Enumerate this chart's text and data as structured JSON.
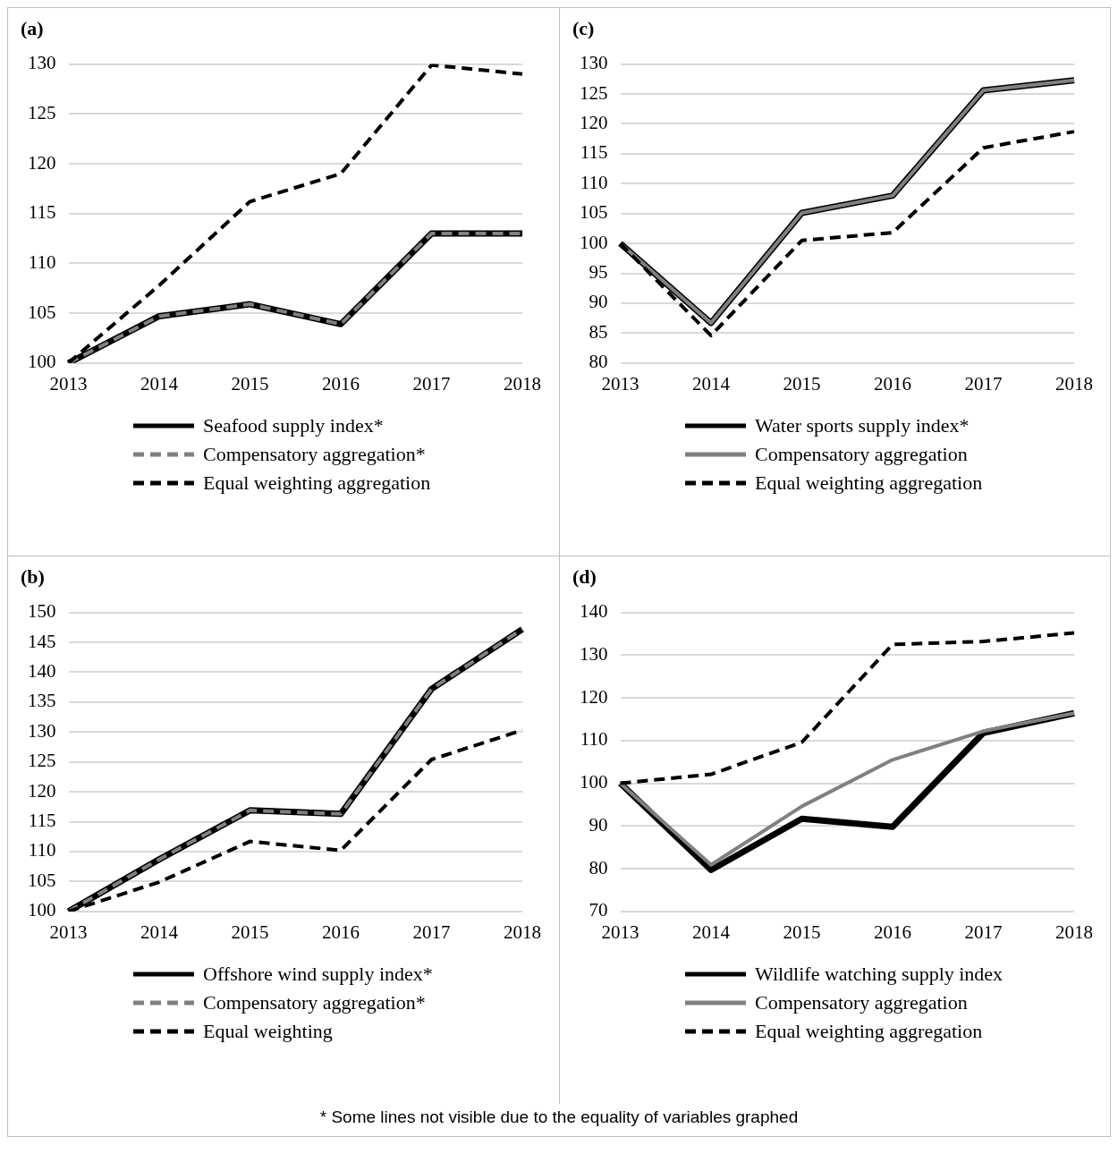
{
  "chart_data": [
    {
      "type": "line",
      "title": "(a)",
      "categories": [
        "2013",
        "2014",
        "2015",
        "2016",
        "2017",
        "2018"
      ],
      "ylim": [
        100,
        130
      ],
      "yticks": [
        100,
        105,
        110,
        115,
        120,
        125,
        130
      ],
      "grid": "y",
      "legend": "bottom",
      "series": [
        {
          "name": "Seafood supply index*",
          "color": "#000000",
          "line_style": "solid",
          "values": [
            100,
            104.7,
            105.9,
            103.9,
            113.0,
            113.0
          ]
        },
        {
          "name": "Compensatory aggregation*",
          "color": "#808080",
          "line_style": "dashed",
          "values": [
            100,
            104.7,
            105.9,
            103.9,
            113.0,
            113.0
          ]
        },
        {
          "name": "Equal weighting aggregation",
          "color": "#000000",
          "line_style": "dashed",
          "values": [
            100,
            107.8,
            116.2,
            119.0,
            129.9,
            129.0
          ]
        }
      ]
    },
    {
      "type": "line",
      "title": "(c)",
      "categories": [
        "2013",
        "2014",
        "2015",
        "2016",
        "2017",
        "2018"
      ],
      "ylim": [
        80,
        130
      ],
      "yticks": [
        80,
        85,
        90,
        95,
        100,
        105,
        110,
        115,
        120,
        125,
        130
      ],
      "grid": "y",
      "legend": "bottom",
      "series": [
        {
          "name": "Water sports supply index*",
          "color": "#000000",
          "line_style": "solid",
          "values": [
            100,
            86.7,
            105.1,
            108.0,
            125.6,
            127.3
          ]
        },
        {
          "name": "Compensatory aggregation",
          "color": "#808080",
          "line_style": "solid",
          "values": [
            100,
            86.7,
            105.1,
            108.0,
            125.6,
            127.3
          ]
        },
        {
          "name": "Equal weighting aggregation",
          "color": "#000000",
          "line_style": "dashed",
          "values": [
            100,
            84.6,
            100.5,
            101.8,
            116.0,
            118.7
          ]
        }
      ]
    },
    {
      "type": "line",
      "title": "(b)",
      "categories": [
        "2013",
        "2014",
        "2015",
        "2016",
        "2017",
        "2018"
      ],
      "ylim": [
        100,
        150
      ],
      "yticks": [
        100,
        105,
        110,
        115,
        120,
        125,
        130,
        135,
        140,
        145,
        150
      ],
      "grid": "y",
      "legend": "bottom",
      "series": [
        {
          "name": "Offshore wind supply index*",
          "color": "#000000",
          "line_style": "solid",
          "values": [
            100,
            108.7,
            116.9,
            116.3,
            137.2,
            147.2
          ]
        },
        {
          "name": "Compensatory aggregation*",
          "color": "#808080",
          "line_style": "dashed",
          "values": [
            100,
            108.7,
            116.9,
            116.3,
            137.2,
            147.2
          ]
        },
        {
          "name": "Equal weighting",
          "color": "#000000",
          "line_style": "dashed",
          "values": [
            100,
            104.9,
            111.7,
            110.2,
            125.4,
            130.3
          ]
        }
      ]
    },
    {
      "type": "line",
      "title": "(d)",
      "categories": [
        "2013",
        "2014",
        "2015",
        "2016",
        "2017",
        "2018"
      ],
      "ylim": [
        70,
        140
      ],
      "yticks": [
        70,
        80,
        90,
        100,
        110,
        120,
        130,
        140
      ],
      "grid": "y",
      "legend": "bottom",
      "annotations": [
        "* Some lines not visible due to the equality of variables graphed"
      ],
      "series": [
        {
          "name": "Wildlife watching supply index",
          "color": "#000000",
          "line_style": "solid",
          "values": [
            100,
            79.7,
            91.7,
            89.8,
            111.8,
            116.4
          ]
        },
        {
          "name": "Compensatory aggregation",
          "color": "#808080",
          "line_style": "solid",
          "values": [
            100,
            80.9,
            94.6,
            105.5,
            112.2,
            116.4
          ]
        },
        {
          "name": "Equal weighting aggregation",
          "color": "#000000",
          "line_style": "dashed",
          "values": [
            100,
            102.1,
            109.6,
            132.5,
            133.2,
            135.2
          ]
        }
      ]
    }
  ]
}
